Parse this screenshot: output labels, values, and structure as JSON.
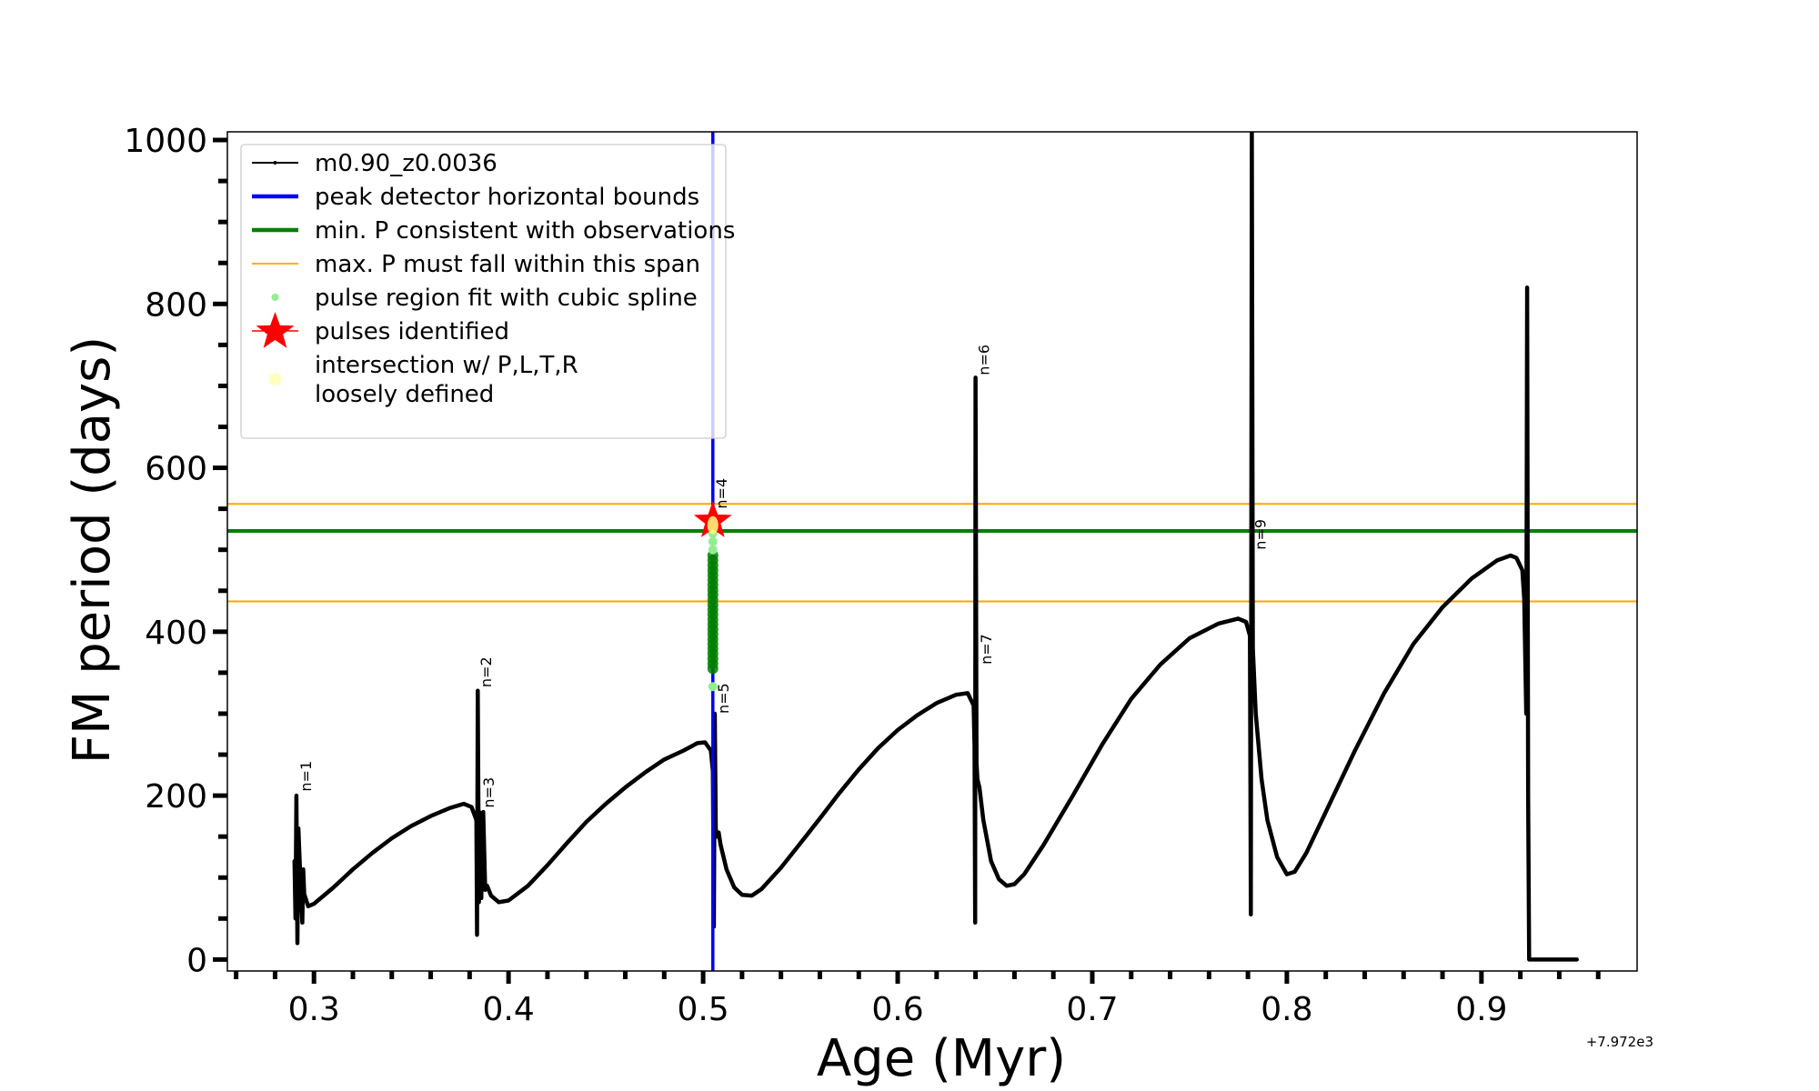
{
  "chart_data": {
    "type": "line",
    "title": "",
    "xlabel": "Age (Myr)",
    "ylabel": "FM period (days)",
    "x_offset_label": "+7.972e3",
    "xlim": [
      0.2555,
      0.98
    ],
    "ylim": [
      -14,
      1010
    ],
    "xticks": [
      0.3,
      0.4,
      0.5,
      0.6,
      0.7,
      0.8,
      0.9
    ],
    "xtick_labels": [
      "0.3",
      "0.4",
      "0.5",
      "0.6",
      "0.7",
      "0.8",
      "0.9"
    ],
    "x_minor_step": 0.02,
    "yticks": [
      0,
      200,
      400,
      600,
      800,
      1000
    ],
    "ytick_labels": [
      "0",
      "200",
      "400",
      "600",
      "800",
      "1000"
    ],
    "y_minor_step": 50,
    "grid": false,
    "legend_placement": "upper-left",
    "legend": [
      {
        "label": "m0.90_z0.0036",
        "kind": "line-marker",
        "color": "#000000"
      },
      {
        "label": "peak detector horizontal bounds",
        "kind": "line-thick",
        "color": "#0000ff"
      },
      {
        "label": "min. P consistent with observations",
        "kind": "line-thick",
        "color": "#008000"
      },
      {
        "label": "max. P must fall within this span",
        "kind": "line-thin",
        "color": "#ffa500"
      },
      {
        "label": "pulse region fit with cubic spline",
        "kind": "dot",
        "color": "#90ee90"
      },
      {
        "label": "pulses identified",
        "kind": "star",
        "color": "#ff0000"
      },
      {
        "label": "intersection w/ P,L,T,R\nloosely defined",
        "kind": "dot-large",
        "color": "#ffffc0"
      }
    ],
    "reference_lines": {
      "vertical_blue_age": 0.505,
      "min_P_green": 523,
      "max_P_orange": [
        437,
        556
      ]
    },
    "series": [
      {
        "name": "m0.90_z0.0036",
        "color": "#000000",
        "points": [
          [
            0.29,
            120
          ],
          [
            0.2905,
            50
          ],
          [
            0.291,
            200
          ],
          [
            0.2915,
            20
          ],
          [
            0.292,
            160
          ],
          [
            0.293,
            100
          ],
          [
            0.294,
            45
          ],
          [
            0.2945,
            110
          ],
          [
            0.295,
            80
          ],
          [
            0.297,
            65
          ],
          [
            0.3,
            68
          ],
          [
            0.31,
            88
          ],
          [
            0.32,
            110
          ],
          [
            0.33,
            130
          ],
          [
            0.34,
            148
          ],
          [
            0.35,
            163
          ],
          [
            0.36,
            175
          ],
          [
            0.37,
            185
          ],
          [
            0.377,
            190
          ],
          [
            0.381,
            186
          ],
          [
            0.3835,
            170
          ],
          [
            0.3838,
            30
          ],
          [
            0.3842,
            328
          ],
          [
            0.3848,
            70
          ],
          [
            0.385,
            180
          ],
          [
            0.386,
            75
          ],
          [
            0.387,
            180
          ],
          [
            0.388,
            85
          ],
          [
            0.389,
            90
          ],
          [
            0.391,
            78
          ],
          [
            0.395,
            70
          ],
          [
            0.4,
            72
          ],
          [
            0.41,
            90
          ],
          [
            0.42,
            115
          ],
          [
            0.43,
            142
          ],
          [
            0.44,
            168
          ],
          [
            0.45,
            190
          ],
          [
            0.46,
            210
          ],
          [
            0.47,
            228
          ],
          [
            0.48,
            244
          ],
          [
            0.49,
            255
          ],
          [
            0.497,
            264
          ],
          [
            0.501,
            265
          ],
          [
            0.504,
            255
          ],
          [
            0.505,
            230
          ],
          [
            0.5055,
            40
          ],
          [
            0.506,
            300
          ],
          [
            0.5065,
            160
          ],
          [
            0.507,
            150
          ],
          [
            0.508,
            155
          ],
          [
            0.509,
            140
          ],
          [
            0.512,
            110
          ],
          [
            0.516,
            88
          ],
          [
            0.52,
            79
          ],
          [
            0.525,
            78
          ],
          [
            0.53,
            86
          ],
          [
            0.54,
            112
          ],
          [
            0.55,
            142
          ],
          [
            0.56,
            172
          ],
          [
            0.57,
            203
          ],
          [
            0.58,
            232
          ],
          [
            0.59,
            258
          ],
          [
            0.6,
            280
          ],
          [
            0.61,
            298
          ],
          [
            0.62,
            313
          ],
          [
            0.63,
            323
          ],
          [
            0.636,
            325
          ],
          [
            0.639,
            310
          ],
          [
            0.6395,
            260
          ],
          [
            0.6398,
            45
          ],
          [
            0.64,
            710
          ],
          [
            0.6405,
            240
          ],
          [
            0.641,
            220
          ],
          [
            0.642,
            210
          ],
          [
            0.644,
            170
          ],
          [
            0.648,
            120
          ],
          [
            0.652,
            98
          ],
          [
            0.656,
            90
          ],
          [
            0.66,
            92
          ],
          [
            0.665,
            104
          ],
          [
            0.675,
            140
          ],
          [
            0.69,
            200
          ],
          [
            0.705,
            262
          ],
          [
            0.72,
            318
          ],
          [
            0.735,
            360
          ],
          [
            0.75,
            392
          ],
          [
            0.765,
            410
          ],
          [
            0.775,
            416
          ],
          [
            0.779,
            412
          ],
          [
            0.781,
            395
          ],
          [
            0.7815,
            55
          ],
          [
            0.782,
            1010
          ],
          [
            0.7825,
            380
          ],
          [
            0.784,
            300
          ],
          [
            0.787,
            220
          ],
          [
            0.79,
            170
          ],
          [
            0.795,
            125
          ],
          [
            0.8,
            104
          ],
          [
            0.804,
            107
          ],
          [
            0.81,
            130
          ],
          [
            0.82,
            180
          ],
          [
            0.835,
            255
          ],
          [
            0.85,
            325
          ],
          [
            0.865,
            385
          ],
          [
            0.88,
            430
          ],
          [
            0.895,
            465
          ],
          [
            0.908,
            487
          ],
          [
            0.915,
            493
          ],
          [
            0.918,
            490
          ],
          [
            0.921,
            475
          ],
          [
            0.922,
            440
          ],
          [
            0.923,
            300
          ],
          [
            0.9235,
            820
          ],
          [
            0.924,
            200
          ],
          [
            0.9245,
            0
          ],
          [
            0.93,
            0
          ],
          [
            0.94,
            0
          ],
          [
            0.949,
            0
          ]
        ]
      }
    ],
    "pulse_spline_points": {
      "color_light": "#90ee90",
      "color_dark": "#008000",
      "age": 0.505,
      "dark_range": [
        355,
        495
      ],
      "light_points": [
        333,
        500,
        510,
        520
      ]
    },
    "pulses_identified": [
      {
        "age": 0.505,
        "period": 535
      }
    ],
    "intersection_points": [
      {
        "age": 0.505,
        "period": 530
      }
    ],
    "annotations": [
      {
        "text": "n=1",
        "age": 0.292,
        "period": 205
      },
      {
        "text": "n=2",
        "age": 0.3845,
        "period": 332
      },
      {
        "text": "n=3",
        "age": 0.386,
        "period": 185
      },
      {
        "text": "n=4",
        "age": 0.5055,
        "period": 550
      },
      {
        "text": "n=5",
        "age": 0.5065,
        "period": 300
      },
      {
        "text": "n=6",
        "age": 0.6405,
        "period": 713
      },
      {
        "text": "n=7",
        "age": 0.6415,
        "period": 360
      },
      {
        "text": "n=9",
        "age": 0.7825,
        "period": 500
      }
    ]
  }
}
